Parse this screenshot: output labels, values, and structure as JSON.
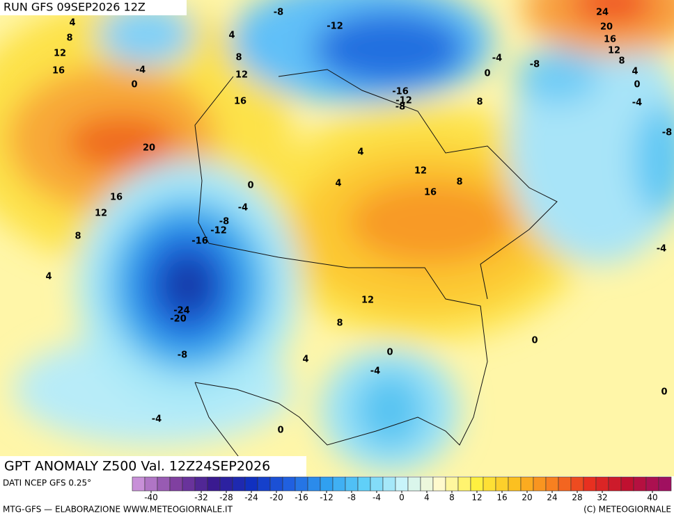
{
  "header": {
    "run": "RUN GFS 09SEP2026 12Z"
  },
  "map": {
    "title": "GPT ANOMALY Z500 Val. 12Z24SEP2026",
    "contour_labels": [
      4,
      8,
      12,
      16,
      -4,
      0,
      4,
      8,
      12,
      16,
      20,
      16,
      12,
      8,
      4,
      0,
      -4,
      -8,
      -12,
      -16,
      -24,
      -20,
      -8,
      -4,
      0,
      4,
      8,
      12,
      -4,
      0,
      0,
      0,
      -4,
      -8,
      -4,
      0,
      4,
      8,
      12,
      16,
      20,
      24,
      -8,
      -4,
      0,
      8,
      8,
      16,
      12,
      4,
      4,
      -16,
      -12,
      -8,
      -12,
      -8
    ]
  },
  "footer": {
    "source": "DATI NCEP GFS 0.25°",
    "credit": "MTG-GFS — ELABORAZIONE WWW.METEOGIORNALE.IT",
    "copyright": "(C) METEOGIORNALE"
  },
  "colorbar": {
    "stops": [
      "#c890d8",
      "#8040a0",
      "#3a1a90",
      "#1030c0",
      "#2060e0",
      "#30a0f0",
      "#60d0f8",
      "#c8f4fa",
      "#fffacd",
      "#fff040",
      "#fcc020",
      "#f88020",
      "#e83020",
      "#c01030",
      "#a01060"
    ],
    "range": [
      -43,
      43
    ],
    "step": 2,
    "ticks": [
      -40,
      -32,
      -28,
      -24,
      -20,
      -16,
      -12,
      -8,
      -4,
      0,
      4,
      8,
      12,
      16,
      20,
      24,
      28,
      32,
      40
    ]
  }
}
